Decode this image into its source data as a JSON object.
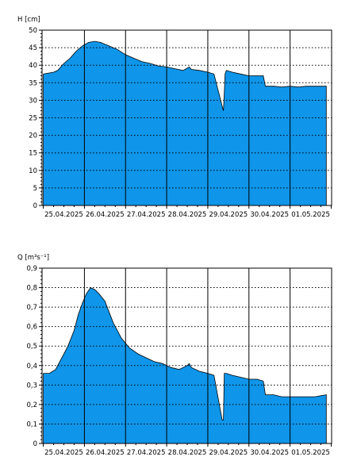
{
  "chart_data": [
    {
      "type": "area",
      "ylabel": "H [cm]",
      "ylim": [
        0,
        50
      ],
      "yticks": [
        0,
        5,
        10,
        15,
        20,
        25,
        30,
        35,
        40,
        45,
        50
      ],
      "ytick_labels": [
        "0",
        "5",
        "10",
        "15",
        "20",
        "25",
        "30",
        "35",
        "40",
        "45",
        "50"
      ],
      "xlim": [
        -0.03,
        7.01
      ],
      "day_labels": [
        "25.04.2025",
        "26.04.2025",
        "27.04.2025",
        "28.04.2025",
        "29.04.2025",
        "30.04.2025",
        "01.05.2025"
      ],
      "grid": true,
      "fill_color": "#0f95e9",
      "x": [
        0,
        0.25,
        0.35,
        0.5,
        0.65,
        0.8,
        0.95,
        1.1,
        1.25,
        1.4,
        1.5,
        1.6,
        1.8,
        2.0,
        2.2,
        2.4,
        2.6,
        2.8,
        3.0,
        3.2,
        3.4,
        3.55,
        3.6,
        3.8,
        4.0,
        4.15,
        4.38,
        4.4,
        4.42,
        4.45,
        4.6,
        4.8,
        5.0,
        5.2,
        5.35,
        5.4,
        5.6,
        5.8,
        6.0,
        6.2,
        6.4,
        6.6,
        6.88
      ],
      "y": [
        37.5,
        38,
        38.5,
        40.5,
        42,
        44,
        45.5,
        46.5,
        46.8,
        46.5,
        46,
        45.5,
        44.5,
        43,
        42,
        41,
        40.5,
        39.8,
        39.5,
        39,
        38.5,
        39.5,
        38.8,
        38.5,
        38,
        37.5,
        27,
        32,
        37.5,
        38.5,
        38,
        37.5,
        37,
        37,
        37,
        34,
        34,
        33.8,
        34,
        33.8,
        34,
        34,
        34
      ]
    },
    {
      "type": "area",
      "ylabel": "Q [m³s⁻¹]",
      "ylim": [
        0,
        0.9
      ],
      "yticks": [
        0,
        0.1,
        0.2,
        0.3,
        0.4,
        0.5,
        0.6,
        0.7,
        0.8,
        0.9
      ],
      "ytick_labels": [
        "0",
        "0,1",
        "0,2",
        "0,3",
        "0,4",
        "0,5",
        "0,6",
        "0,7",
        "0,8",
        "0,9"
      ],
      "xlim": [
        -0.03,
        7.01
      ],
      "day_labels": [
        "25.04.2025",
        "26.04.2025",
        "27.04.2025",
        "28.04.2025",
        "29.04.2025",
        "30.04.2025",
        "01.05.2025"
      ],
      "grid": true,
      "fill_color": "#0f95e9",
      "x": [
        0,
        0.15,
        0.3,
        0.45,
        0.6,
        0.75,
        0.85,
        0.95,
        1.05,
        1.15,
        1.25,
        1.35,
        1.5,
        1.7,
        1.9,
        2.1,
        2.3,
        2.5,
        2.7,
        2.9,
        3.1,
        3.3,
        3.5,
        3.55,
        3.6,
        3.8,
        4.0,
        4.15,
        4.35,
        4.38,
        4.4,
        4.45,
        4.6,
        4.8,
        5.0,
        5.2,
        5.35,
        5.4,
        5.6,
        5.8,
        6.0,
        6.2,
        6.4,
        6.6,
        6.88
      ],
      "y": [
        0.36,
        0.36,
        0.38,
        0.44,
        0.5,
        0.58,
        0.66,
        0.72,
        0.77,
        0.8,
        0.79,
        0.77,
        0.73,
        0.62,
        0.54,
        0.49,
        0.46,
        0.44,
        0.42,
        0.41,
        0.39,
        0.38,
        0.4,
        0.41,
        0.39,
        0.37,
        0.36,
        0.35,
        0.12,
        0.12,
        0.36,
        0.36,
        0.35,
        0.34,
        0.33,
        0.33,
        0.32,
        0.25,
        0.25,
        0.24,
        0.24,
        0.24,
        0.24,
        0.24,
        0.25
      ]
    }
  ]
}
